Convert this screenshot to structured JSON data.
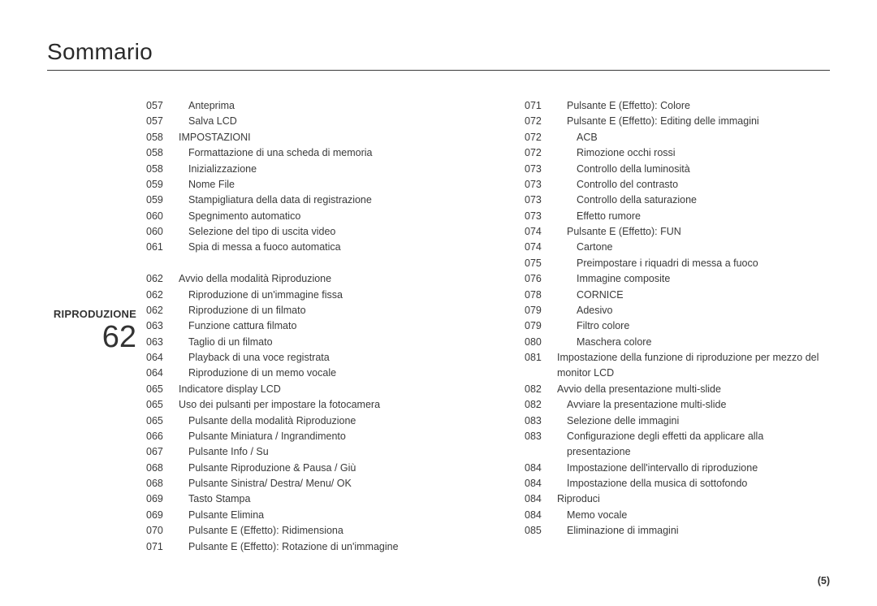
{
  "title": "Sommario",
  "section": {
    "name": "RIPRODUZIONE",
    "page": "62"
  },
  "footer": "(5)",
  "styles": {
    "fontFamily": "Arial, Helvetica, sans-serif",
    "textColor": "#3a3a3a",
    "titleFontSize": 28,
    "bodyFontSize": 12.5,
    "sectionNameFontSize": 13,
    "sectionPageFontSize": 38,
    "ruleColor": "#3a3a3a",
    "indentPx": 12,
    "lineHeight": 1.55,
    "background": "#ffffff"
  },
  "columns": {
    "left": [
      {
        "n": "057",
        "t": "Anteprima",
        "indent": 1
      },
      {
        "n": "057",
        "t": "Salva LCD",
        "indent": 1
      },
      {
        "n": "058",
        "t": "IMPOSTAZIONI",
        "indent": 0
      },
      {
        "n": "058",
        "t": "Formattazione di una scheda di memoria",
        "indent": 1
      },
      {
        "n": "058",
        "t": "Inizializzazione",
        "indent": 1
      },
      {
        "n": "059",
        "t": "Nome File",
        "indent": 1
      },
      {
        "n": "059",
        "t": "Stampigliatura della data di registrazione",
        "indent": 1
      },
      {
        "n": "060",
        "t": "Spegnimento automatico",
        "indent": 1
      },
      {
        "n": "060",
        "t": "Selezione del tipo di uscita video",
        "indent": 1
      },
      {
        "n": "061",
        "t": "Spia di messa a fuoco automatica",
        "indent": 1
      },
      {
        "n": "",
        "t": "",
        "indent": 0
      },
      {
        "n": "062",
        "t": "Avvio della modalità Riproduzione",
        "indent": 0
      },
      {
        "n": "062",
        "t": "Riproduzione di un'immagine fissa",
        "indent": 1
      },
      {
        "n": "062",
        "t": "Riproduzione di un filmato",
        "indent": 1
      },
      {
        "n": "063",
        "t": "Funzione cattura filmato",
        "indent": 1
      },
      {
        "n": "063",
        "t": "Taglio di un filmato",
        "indent": 1
      },
      {
        "n": "064",
        "t": "Playback di una voce registrata",
        "indent": 1
      },
      {
        "n": "064",
        "t": "Riproduzione di un memo vocale",
        "indent": 1
      },
      {
        "n": "065",
        "t": "Indicatore display LCD",
        "indent": 0
      },
      {
        "n": "065",
        "t": "Uso dei pulsanti per impostare la fotocamera",
        "indent": 0
      },
      {
        "n": "065",
        "t": "Pulsante della modalità Riproduzione",
        "indent": 1
      },
      {
        "n": "066",
        "t": "Pulsante Miniatura / Ingrandimento",
        "indent": 1
      },
      {
        "n": "067",
        "t": "Pulsante Info / Su",
        "indent": 1
      },
      {
        "n": "068",
        "t": "Pulsante Riproduzione & Pausa / Giù",
        "indent": 1
      },
      {
        "n": "068",
        "t": "Pulsante Sinistra/ Destra/ Menu/ OK",
        "indent": 1
      },
      {
        "n": "069",
        "t": "Tasto Stampa",
        "indent": 1
      },
      {
        "n": "069",
        "t": "Pulsante Elimina",
        "indent": 1
      },
      {
        "n": "070",
        "t": "Pulsante E (Effetto): Ridimensiona",
        "indent": 1
      },
      {
        "n": "071",
        "t": "Pulsante E (Effetto): Rotazione di un'immagine",
        "indent": 1
      }
    ],
    "right": [
      {
        "n": "071",
        "t": "Pulsante E (Effetto): Colore",
        "indent": 1
      },
      {
        "n": "072",
        "t": "Pulsante E (Effetto): Editing delle immagini",
        "indent": 1
      },
      {
        "n": "072",
        "t": "ACB",
        "indent": 2
      },
      {
        "n": "072",
        "t": "Rimozione occhi rossi",
        "indent": 2
      },
      {
        "n": "073",
        "t": "Controllo della luminosità",
        "indent": 2
      },
      {
        "n": "073",
        "t": "Controllo del contrasto",
        "indent": 2
      },
      {
        "n": "073",
        "t": "Controllo della saturazione",
        "indent": 2
      },
      {
        "n": "073",
        "t": "Effetto rumore",
        "indent": 2
      },
      {
        "n": "074",
        "t": "Pulsante E (Effetto): FUN",
        "indent": 1
      },
      {
        "n": "074",
        "t": "Cartone",
        "indent": 2
      },
      {
        "n": "075",
        "t": "Preimpostare i riquadri di messa a fuoco",
        "indent": 2
      },
      {
        "n": "076",
        "t": "Immagine composite",
        "indent": 2
      },
      {
        "n": "078",
        "t": "CORNICE",
        "indent": 2
      },
      {
        "n": "079",
        "t": "Adesivo",
        "indent": 2
      },
      {
        "n": "079",
        "t": "Filtro colore",
        "indent": 2
      },
      {
        "n": "080",
        "t": "Maschera colore",
        "indent": 2
      },
      {
        "n": "081",
        "t": "Impostazione della funzione di riproduzione per mezzo del monitor LCD",
        "indent": 0
      },
      {
        "n": "082",
        "t": "Avvio della presentazione multi-slide",
        "indent": 0
      },
      {
        "n": "082",
        "t": "Avviare la presentazione multi-slide",
        "indent": 1
      },
      {
        "n": "083",
        "t": "Selezione delle immagini",
        "indent": 1
      },
      {
        "n": "083",
        "t": "Configurazione degli effetti da applicare alla presentazione",
        "indent": 1
      },
      {
        "n": "084",
        "t": "Impostazione dell'intervallo di riproduzione",
        "indent": 1
      },
      {
        "n": "084",
        "t": "Impostazione della musica di sottofondo",
        "indent": 1
      },
      {
        "n": "084",
        "t": "Riproduci",
        "indent": 0
      },
      {
        "n": "084",
        "t": "Memo vocale",
        "indent": 1
      },
      {
        "n": "085",
        "t": "Eliminazione di immagini",
        "indent": 1
      }
    ]
  }
}
